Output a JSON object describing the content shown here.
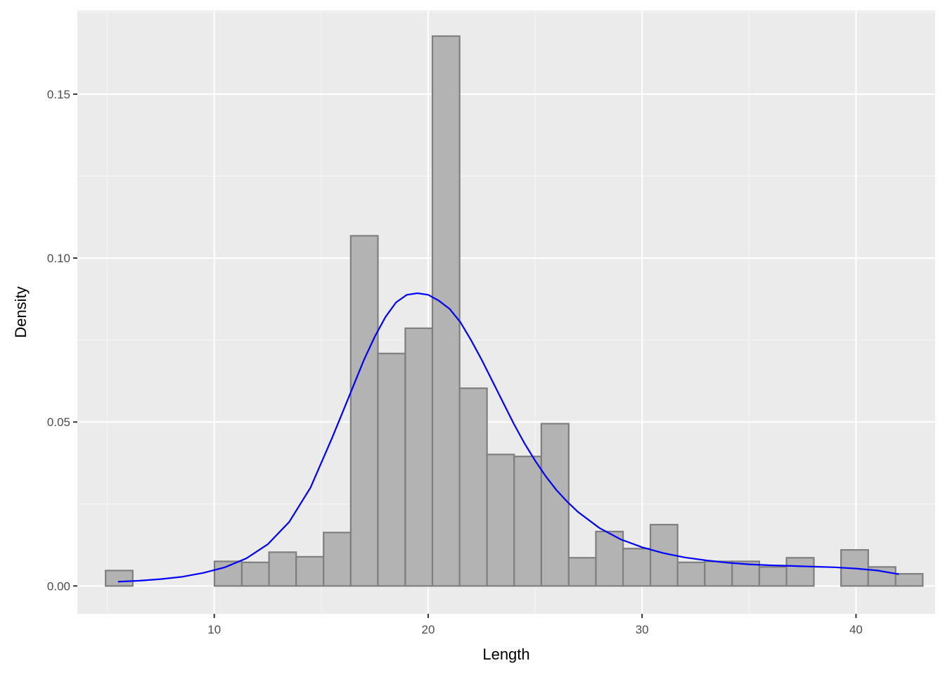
{
  "chart_data": {
    "type": "bar",
    "subtype": "histogram-with-density",
    "xlabel": "Length",
    "ylabel": "Density",
    "xlim": [
      3.6,
      43.7
    ],
    "ylim": [
      -0.0085,
      0.1755
    ],
    "xticks": [
      10,
      20,
      30,
      40
    ],
    "xtick_labels": [
      "10",
      "20",
      "30",
      "40"
    ],
    "yticks": [
      0.0,
      0.05,
      0.1,
      0.15
    ],
    "ytick_labels": [
      "0.00",
      "0.05",
      "0.10",
      "0.15"
    ],
    "grid": true,
    "legend": "none",
    "bins": [
      {
        "x0": 4.92,
        "x1": 6.19,
        "density": 0.0047
      },
      {
        "x0": 6.19,
        "x1": 7.47,
        "density": 0.0
      },
      {
        "x0": 7.47,
        "x1": 8.74,
        "density": 0.0
      },
      {
        "x0": 8.74,
        "x1": 10.01,
        "density": 0.0
      },
      {
        "x0": 10.01,
        "x1": 11.29,
        "density": 0.0075
      },
      {
        "x0": 11.29,
        "x1": 12.56,
        "density": 0.0072
      },
      {
        "x0": 12.56,
        "x1": 13.83,
        "density": 0.0103
      },
      {
        "x0": 13.83,
        "x1": 15.11,
        "density": 0.0089
      },
      {
        "x0": 15.11,
        "x1": 16.38,
        "density": 0.0163
      },
      {
        "x0": 16.38,
        "x1": 17.65,
        "density": 0.1068
      },
      {
        "x0": 17.65,
        "x1": 18.93,
        "density": 0.0709
      },
      {
        "x0": 18.93,
        "x1": 20.2,
        "density": 0.0786
      },
      {
        "x0": 20.2,
        "x1": 21.47,
        "density": 0.1677
      },
      {
        "x0": 21.47,
        "x1": 22.75,
        "density": 0.0603
      },
      {
        "x0": 22.75,
        "x1": 24.02,
        "density": 0.0401
      },
      {
        "x0": 24.02,
        "x1": 25.29,
        "density": 0.0395
      },
      {
        "x0": 25.29,
        "x1": 26.57,
        "density": 0.0495
      },
      {
        "x0": 26.57,
        "x1": 27.84,
        "density": 0.0086
      },
      {
        "x0": 27.84,
        "x1": 29.11,
        "density": 0.0166
      },
      {
        "x0": 29.11,
        "x1": 30.39,
        "density": 0.0114
      },
      {
        "x0": 30.39,
        "x1": 31.66,
        "density": 0.0187
      },
      {
        "x0": 31.66,
        "x1": 32.93,
        "density": 0.0072
      },
      {
        "x0": 32.93,
        "x1": 34.21,
        "density": 0.0075
      },
      {
        "x0": 34.21,
        "x1": 35.48,
        "density": 0.0075
      },
      {
        "x0": 35.48,
        "x1": 36.75,
        "density": 0.0058
      },
      {
        "x0": 36.75,
        "x1": 38.03,
        "density": 0.0086
      },
      {
        "x0": 38.03,
        "x1": 39.3,
        "density": 0.0
      },
      {
        "x0": 39.3,
        "x1": 40.57,
        "density": 0.011
      },
      {
        "x0": 40.57,
        "x1": 41.85,
        "density": 0.0058
      },
      {
        "x0": 41.85,
        "x1": 43.12,
        "density": 0.0037
      }
    ],
    "density_curve": {
      "x": [
        5.5,
        6.5,
        7.5,
        8.5,
        9.5,
        10.5,
        11.5,
        12.5,
        13.5,
        14.5,
        15.5,
        16.0,
        16.5,
        17.0,
        17.5,
        18.0,
        18.5,
        19.0,
        19.5,
        20.0,
        20.5,
        21.0,
        21.5,
        22.0,
        22.5,
        23.0,
        23.5,
        24.0,
        24.5,
        25.0,
        25.5,
        26.0,
        26.5,
        27.0,
        28.0,
        29.0,
        30.0,
        31.0,
        32.0,
        33.0,
        34.0,
        35.0,
        36.0,
        37.0,
        38.0,
        39.0,
        40.0,
        41.0,
        42.0
      ],
      "y": [
        0.0013,
        0.0016,
        0.0021,
        0.0028,
        0.004,
        0.0057,
        0.0084,
        0.0127,
        0.0195,
        0.03,
        0.045,
        0.053,
        0.061,
        0.069,
        0.076,
        0.082,
        0.0865,
        0.0888,
        0.0893,
        0.0888,
        0.087,
        0.0845,
        0.0805,
        0.075,
        0.069,
        0.0625,
        0.056,
        0.0495,
        0.0435,
        0.0382,
        0.0334,
        0.0292,
        0.0257,
        0.0226,
        0.0177,
        0.0142,
        0.0118,
        0.01,
        0.0087,
        0.0078,
        0.0071,
        0.0066,
        0.0063,
        0.0061,
        0.0059,
        0.0057,
        0.0053,
        0.0047,
        0.0036
      ]
    },
    "colors": {
      "panel_background": "#ebebeb",
      "grid_major": "#ffffff",
      "grid_minor": "#f5f5f5",
      "bar_fill": "#b3b3b3",
      "bar_outline": "#7f7f7f",
      "density_line": "#0000ff"
    }
  }
}
